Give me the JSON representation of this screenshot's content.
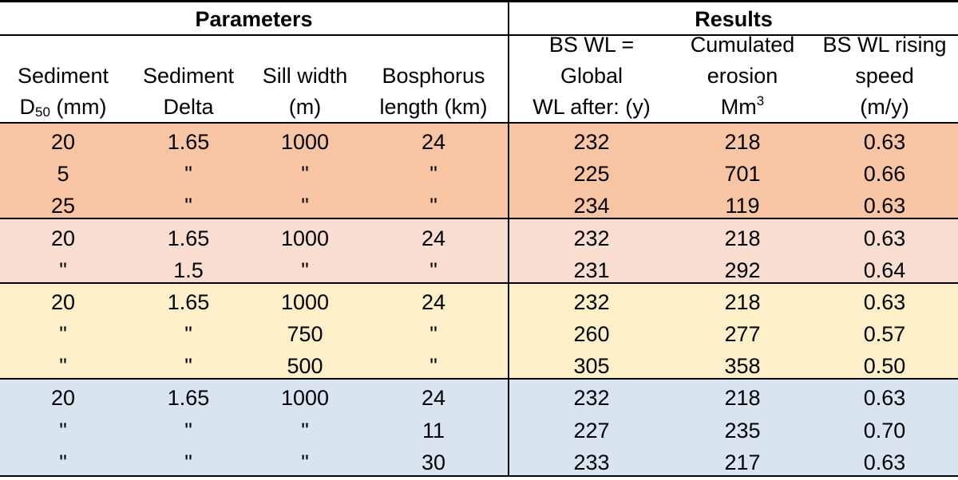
{
  "groups": {
    "parameters": "Parameters",
    "results": "Results"
  },
  "headers": {
    "sediment_d50": {
      "line1": "Sediment",
      "line2_main": "D",
      "line2_sub": "50",
      "line2_rest": " (mm)"
    },
    "sediment_delta": {
      "line1": "Sediment",
      "line2": "Delta"
    },
    "sill_width": {
      "line1": "Sill width",
      "line2": "(m)"
    },
    "bosphorus_length": {
      "line1": "Bosphorus",
      "line2": "length (km)"
    },
    "bs_wl_global": {
      "line1": "BS WL =",
      "line2": "Global",
      "line3": "WL after: (y)"
    },
    "cumulated_erosion": {
      "line1": "Cumulated",
      "line2": "erosion",
      "line3_main": "Mm",
      "line3_sup": "3"
    },
    "bs_wl_rising_speed": {
      "line1": "BS WL rising",
      "line2": "speed",
      "line3": "(m/y)"
    }
  },
  "band_colors": [
    "#f7c4a4",
    "#f9ddd0",
    "#fdefc8",
    "#d9e4f1"
  ],
  "rows": [
    {
      "d50": "20",
      "delta": "1.65",
      "sill": "1000",
      "length": "24",
      "wl": "232",
      "erosion": "218",
      "speed": "0.63"
    },
    {
      "d50": "5",
      "delta": "\"",
      "sill": "\"",
      "length": "\"",
      "wl": "225",
      "erosion": "701",
      "speed": "0.66"
    },
    {
      "d50": "25",
      "delta": "\"",
      "sill": "\"",
      "length": "\"",
      "wl": "234",
      "erosion": "119",
      "speed": "0.63"
    },
    {
      "d50": "20",
      "delta": "1.65",
      "sill": "1000",
      "length": "24",
      "wl": "232",
      "erosion": "218",
      "speed": "0.63"
    },
    {
      "d50": "\"",
      "delta": "1.5",
      "sill": "\"",
      "length": "\"",
      "wl": "231",
      "erosion": "292",
      "speed": "0.64"
    },
    {
      "d50": "20",
      "delta": "1.65",
      "sill": "1000",
      "length": "24",
      "wl": "232",
      "erosion": "218",
      "speed": "0.63"
    },
    {
      "d50": "\"",
      "delta": "\"",
      "sill": "750",
      "length": "\"",
      "wl": "260",
      "erosion": "277",
      "speed": "0.57"
    },
    {
      "d50": "\"",
      "delta": "\"",
      "sill": "500",
      "length": "\"",
      "wl": "305",
      "erosion": "358",
      "speed": "0.50"
    },
    {
      "d50": "20",
      "delta": "1.65",
      "sill": "1000",
      "length": "24",
      "wl": "232",
      "erosion": "218",
      "speed": "0.63"
    },
    {
      "d50": "\"",
      "delta": "\"",
      "sill": "\"",
      "length": "11",
      "wl": "227",
      "erosion": "235",
      "speed": "0.70"
    },
    {
      "d50": "\"",
      "delta": "\"",
      "sill": "\"",
      "length": "30",
      "wl": "233",
      "erosion": "217",
      "speed": "0.63"
    }
  ]
}
